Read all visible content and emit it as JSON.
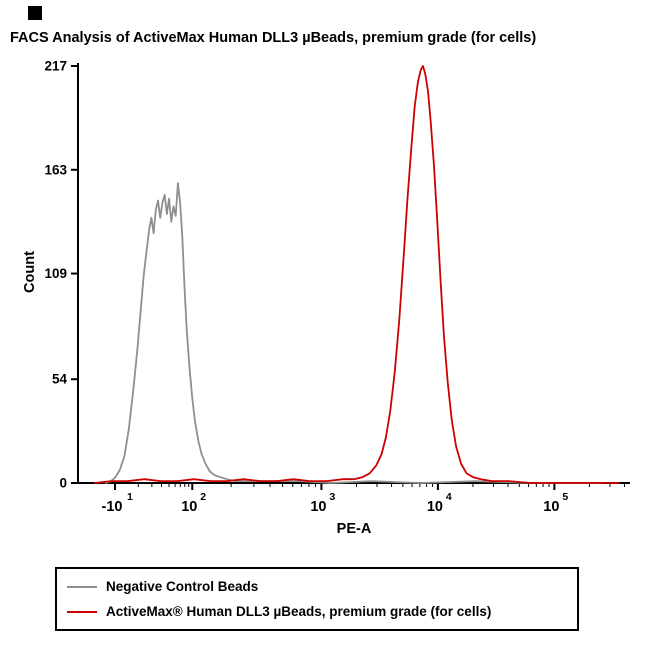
{
  "title": "FACS Analysis of ActiveMax Human DLL3 µBeads, premium grade (for cells)",
  "legend": {
    "items": [
      {
        "label": "Negative Control Beads",
        "color": "#8f8f8f"
      },
      {
        "label": "ActiveMax® Human DLL3 µBeads, premium grade (for cells)",
        "color": "#cc0000"
      }
    ]
  },
  "chart_data": {
    "type": "line",
    "title": "FACS Analysis of ActiveMax Human DLL3 µBeads, premium grade (for cells)",
    "xlabel": "PE-A",
    "ylabel": "Count",
    "ylim": [
      0,
      217
    ],
    "y_ticks": [
      0,
      54,
      109,
      163,
      217
    ],
    "x_scale": "biexponential-log",
    "x_ticks": [
      {
        "base": "-10",
        "exp": "1",
        "frac": 0.067
      },
      {
        "base": "10",
        "exp": "2",
        "frac": 0.207
      },
      {
        "base": "10",
        "exp": "3",
        "frac": 0.441
      },
      {
        "base": "10",
        "exp": "4",
        "frac": 0.652
      },
      {
        "base": "10",
        "exp": "5",
        "frac": 0.863
      }
    ],
    "grid": false,
    "legend_position": "bottom-box",
    "series": [
      {
        "id": "negative-control-beads",
        "name": "Negative Control Beads",
        "color": "#8f8f8f",
        "peak_count": 156,
        "points": [
          [
            0.05,
            0
          ],
          [
            0.06,
            1
          ],
          [
            0.068,
            3
          ],
          [
            0.076,
            7
          ],
          [
            0.084,
            14
          ],
          [
            0.092,
            28
          ],
          [
            0.1,
            48
          ],
          [
            0.107,
            68
          ],
          [
            0.113,
            88
          ],
          [
            0.119,
            108
          ],
          [
            0.124,
            120
          ],
          [
            0.129,
            132
          ],
          [
            0.133,
            138
          ],
          [
            0.137,
            130
          ],
          [
            0.141,
            142
          ],
          [
            0.145,
            147
          ],
          [
            0.149,
            138
          ],
          [
            0.153,
            146
          ],
          [
            0.157,
            150
          ],
          [
            0.161,
            140
          ],
          [
            0.165,
            148
          ],
          [
            0.169,
            136
          ],
          [
            0.173,
            144
          ],
          [
            0.177,
            139
          ],
          [
            0.181,
            156
          ],
          [
            0.185,
            146
          ],
          [
            0.189,
            128
          ],
          [
            0.193,
            102
          ],
          [
            0.197,
            80
          ],
          [
            0.202,
            60
          ],
          [
            0.207,
            44
          ],
          [
            0.212,
            32
          ],
          [
            0.218,
            22
          ],
          [
            0.224,
            15
          ],
          [
            0.231,
            10
          ],
          [
            0.239,
            6
          ],
          [
            0.248,
            4
          ],
          [
            0.258,
            3
          ],
          [
            0.27,
            2
          ],
          [
            0.285,
            1
          ],
          [
            0.31,
            1
          ],
          [
            0.35,
            1
          ],
          [
            0.4,
            1
          ],
          [
            0.46,
            0
          ],
          [
            0.53,
            1
          ],
          [
            0.62,
            0
          ],
          [
            0.72,
            1
          ],
          [
            0.82,
            0
          ],
          [
            0.95,
            0
          ]
        ]
      },
      {
        "id": "activemax-dll3-beads",
        "name": "ActiveMax® Human DLL3 µBeads, premium grade (for cells)",
        "color": "#cc0000",
        "peak_count": 217,
        "points": [
          [
            0.03,
            0
          ],
          [
            0.06,
            1
          ],
          [
            0.09,
            1
          ],
          [
            0.12,
            2
          ],
          [
            0.15,
            1
          ],
          [
            0.18,
            1
          ],
          [
            0.21,
            2
          ],
          [
            0.24,
            1
          ],
          [
            0.27,
            1
          ],
          [
            0.3,
            2
          ],
          [
            0.33,
            1
          ],
          [
            0.36,
            1
          ],
          [
            0.39,
            2
          ],
          [
            0.42,
            1
          ],
          [
            0.45,
            1
          ],
          [
            0.48,
            2
          ],
          [
            0.5,
            2
          ],
          [
            0.515,
            3
          ],
          [
            0.528,
            5
          ],
          [
            0.54,
            9
          ],
          [
            0.55,
            15
          ],
          [
            0.558,
            24
          ],
          [
            0.566,
            38
          ],
          [
            0.574,
            58
          ],
          [
            0.582,
            85
          ],
          [
            0.59,
            118
          ],
          [
            0.597,
            148
          ],
          [
            0.604,
            175
          ],
          [
            0.61,
            196
          ],
          [
            0.616,
            209
          ],
          [
            0.621,
            215
          ],
          [
            0.625,
            217
          ],
          [
            0.629,
            213
          ],
          [
            0.634,
            204
          ],
          [
            0.639,
            188
          ],
          [
            0.645,
            165
          ],
          [
            0.651,
            135
          ],
          [
            0.657,
            104
          ],
          [
            0.663,
            76
          ],
          [
            0.67,
            52
          ],
          [
            0.677,
            33
          ],
          [
            0.685,
            19
          ],
          [
            0.694,
            10
          ],
          [
            0.704,
            5
          ],
          [
            0.716,
            3
          ],
          [
            0.73,
            2
          ],
          [
            0.75,
            1
          ],
          [
            0.78,
            1
          ],
          [
            0.82,
            0
          ],
          [
            0.9,
            0
          ],
          [
            0.98,
            0
          ]
        ]
      }
    ]
  }
}
